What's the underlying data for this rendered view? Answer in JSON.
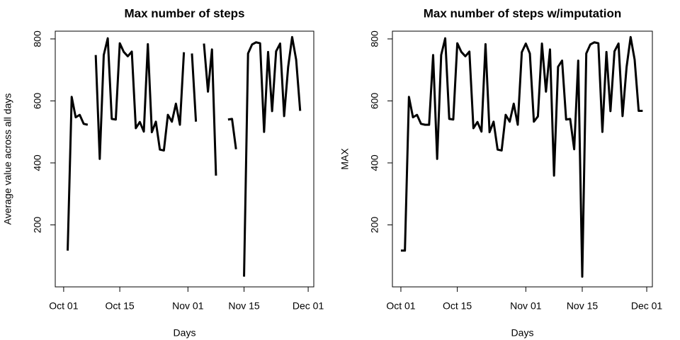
{
  "chart_data": [
    {
      "type": "line",
      "title": "Max number of steps",
      "xlabel": "Days",
      "ylabel": "Average value across all days",
      "x": [
        0,
        1,
        2,
        3,
        4,
        5,
        6,
        7,
        8,
        9,
        10,
        11,
        12,
        13,
        14,
        15,
        16,
        17,
        18,
        19,
        20,
        21,
        22,
        23,
        24,
        25,
        26,
        27,
        28,
        29,
        30,
        31,
        32,
        33,
        34,
        35,
        36,
        37,
        38,
        39,
        40,
        41,
        42,
        43,
        44,
        45,
        46,
        47,
        48,
        49,
        50,
        51,
        52,
        53,
        54,
        55,
        56,
        57,
        58,
        59,
        60
      ],
      "series": [
        {
          "name": "max",
          "color": "#000000",
          "values": [
            null,
            117,
            613,
            547,
            555,
            526,
            523,
            null,
            748,
            413,
            748,
            802,
            542,
            540,
            786,
            758,
            744,
            759,
            512,
            532,
            501,
            783,
            499,
            533,
            443,
            440,
            555,
            533,
            591,
            523,
            757,
            null,
            753,
            533,
            null,
            785,
            630,
            766,
            359,
            null,
            null,
            540,
            542,
            444,
            null,
            33,
            753,
            782,
            789,
            786,
            500,
            758,
            567,
            760,
            785,
            551,
            709,
            806,
            733,
            568,
            null
          ]
        }
      ],
      "xlim": [
        -2.1,
        62.4
      ],
      "ylim": [
        0,
        825
      ],
      "xticks": [
        {
          "value": 0,
          "label": "Oct 01"
        },
        {
          "value": 14,
          "label": "Oct 15"
        },
        {
          "value": 31,
          "label": "Nov 01"
        },
        {
          "value": 45,
          "label": "Nov 15"
        },
        {
          "value": 61,
          "label": "Dec 01"
        }
      ],
      "yticks": [
        200,
        400,
        600,
        800
      ]
    },
    {
      "type": "line",
      "title": "Max number of steps w/imputation",
      "xlabel": "Days",
      "ylabel": "MAX",
      "x": [
        0,
        1,
        2,
        3,
        4,
        5,
        6,
        7,
        8,
        9,
        10,
        11,
        12,
        13,
        14,
        15,
        16,
        17,
        18,
        19,
        20,
        21,
        22,
        23,
        24,
        25,
        26,
        27,
        28,
        29,
        30,
        31,
        32,
        33,
        34,
        35,
        36,
        37,
        38,
        39,
        40,
        41,
        42,
        43,
        44,
        45,
        46,
        47,
        48,
        49,
        50,
        51,
        52,
        53,
        54,
        55,
        56,
        57,
        58,
        59,
        60
      ],
      "series": [
        {
          "name": "max",
          "color": "#000000",
          "values": [
            117,
            117,
            613,
            547,
            555,
            526,
            523,
            523,
            748,
            413,
            748,
            802,
            542,
            540,
            786,
            758,
            744,
            759,
            512,
            532,
            501,
            783,
            499,
            533,
            443,
            440,
            555,
            533,
            591,
            523,
            757,
            785,
            753,
            533,
            550,
            785,
            630,
            766,
            359,
            710,
            730,
            540,
            542,
            444,
            730,
            33,
            753,
            782,
            789,
            786,
            500,
            758,
            567,
            760,
            785,
            551,
            709,
            806,
            733,
            568,
            568
          ]
        }
      ],
      "xlim": [
        -2.1,
        62.4
      ],
      "ylim": [
        0,
        825
      ],
      "xticks": [
        {
          "value": 0,
          "label": "Oct 01"
        },
        {
          "value": 14,
          "label": "Oct 15"
        },
        {
          "value": 31,
          "label": "Nov 01"
        },
        {
          "value": 45,
          "label": "Nov 15"
        },
        {
          "value": 61,
          "label": "Dec 01"
        }
      ],
      "yticks": [
        200,
        400,
        600,
        800
      ]
    }
  ]
}
